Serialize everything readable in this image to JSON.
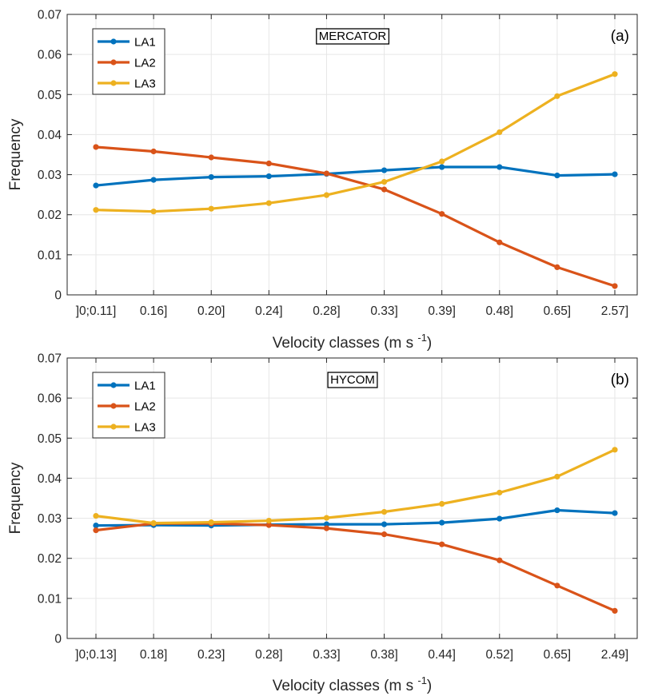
{
  "chart_data": [
    {
      "type": "line",
      "panel_label": "(a)",
      "annotation": "MERCATOR",
      "categories": [
        "]0;0.11]",
        "0.16]",
        "0.20]",
        "0.24]",
        "0.28]",
        "0.33]",
        "0.39]",
        "0.48]",
        "0.65]",
        "2.57]"
      ],
      "series": [
        {
          "name": "LA1",
          "color": "#0072BD",
          "values": [
            0.0273,
            0.0287,
            0.0294,
            0.0296,
            0.0302,
            0.0311,
            0.0319,
            0.0319,
            0.0298,
            0.0301
          ]
        },
        {
          "name": "LA2",
          "color": "#D95319",
          "values": [
            0.0369,
            0.0358,
            0.0343,
            0.0328,
            0.0303,
            0.0263,
            0.0202,
            0.0131,
            0.0069,
            0.0022
          ]
        },
        {
          "name": "LA3",
          "color": "#EDB120",
          "values": [
            0.0212,
            0.0208,
            0.0215,
            0.0229,
            0.0249,
            0.0282,
            0.0333,
            0.0406,
            0.0496,
            0.0551
          ]
        }
      ],
      "xlabel": "Velocity classes (m s",
      "xlabel_sup": "-1",
      "xlabel_end": ")",
      "ylabel": "Frequency",
      "ylim": [
        0,
        0.07
      ],
      "yticks": [
        "0",
        "0.01",
        "0.02",
        "0.03",
        "0.04",
        "0.05",
        "0.06",
        "0.07"
      ],
      "grid": true,
      "legend_position": "top-left"
    },
    {
      "type": "line",
      "panel_label": "(b)",
      "annotation": "HYCOM",
      "categories": [
        "]0;0.13]",
        "0.18]",
        "0.23]",
        "0.28]",
        "0.33]",
        "0.38]",
        "0.44]",
        "0.52]",
        "0.65]",
        "2.49]"
      ],
      "series": [
        {
          "name": "LA1",
          "color": "#0072BD",
          "values": [
            0.0282,
            0.0283,
            0.0282,
            0.0284,
            0.0285,
            0.0285,
            0.0289,
            0.0299,
            0.032,
            0.0313
          ]
        },
        {
          "name": "LA2",
          "color": "#D95319",
          "values": [
            0.027,
            0.0287,
            0.0287,
            0.0283,
            0.0275,
            0.026,
            0.0235,
            0.0195,
            0.0132,
            0.0069
          ]
        },
        {
          "name": "LA3",
          "color": "#EDB120",
          "values": [
            0.0306,
            0.0288,
            0.029,
            0.0294,
            0.0301,
            0.0316,
            0.0336,
            0.0364,
            0.0404,
            0.0471
          ]
        }
      ],
      "xlabel": "Velocity classes (m s",
      "xlabel_sup": "-1",
      "xlabel_end": ")",
      "ylabel": "Frequency",
      "ylim": [
        0,
        0.07
      ],
      "yticks": [
        "0",
        "0.01",
        "0.02",
        "0.03",
        "0.04",
        "0.05",
        "0.06",
        "0.07"
      ],
      "grid": true,
      "legend_position": "top-left"
    }
  ]
}
